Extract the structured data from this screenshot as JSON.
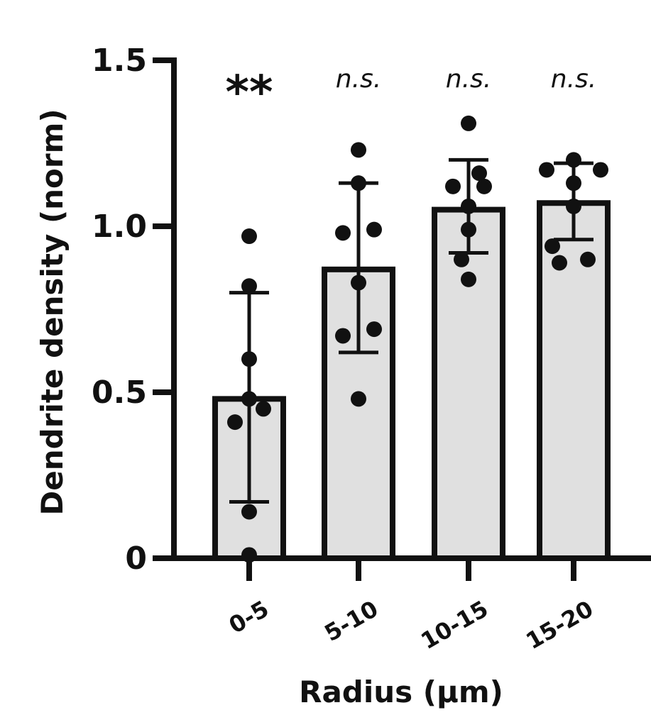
{
  "chart_data": {
    "type": "bar",
    "categories": [
      "0-5",
      "5-10",
      "10-15",
      "15-20"
    ],
    "values": [
      0.48,
      0.87,
      1.05,
      1.07
    ],
    "error": [
      {
        "low": 0.17,
        "high": 0.8
      },
      {
        "low": 0.62,
        "high": 1.13
      },
      {
        "low": 0.92,
        "high": 1.2
      },
      {
        "low": 0.96,
        "high": 1.19
      }
    ],
    "points": [
      [
        0.97,
        0.82,
        0.6,
        0.48,
        0.45,
        0.41,
        0.14,
        0.01
      ],
      [
        1.23,
        1.13,
        0.99,
        0.98,
        0.83,
        0.69,
        0.67,
        0.48
      ],
      [
        1.31,
        1.16,
        1.12,
        1.12,
        1.06,
        0.99,
        0.9,
        0.84
      ],
      [
        1.2,
        1.17,
        1.17,
        1.13,
        1.06,
        0.94,
        0.9,
        0.89
      ]
    ],
    "annotations": [
      "**",
      "n.s.",
      "n.s.",
      "n.s."
    ],
    "xlabel": "Radius (µm)",
    "ylabel": "Dendrite density (norm)",
    "yticks": [
      "0",
      "0.5",
      "1.0",
      "1.5"
    ],
    "ytick_values": [
      0,
      0.5,
      1.0,
      1.5
    ],
    "ylim": [
      0,
      1.5
    ],
    "grid": false,
    "bar_color": "#e0e0e0",
    "edge_color": "#111111"
  }
}
